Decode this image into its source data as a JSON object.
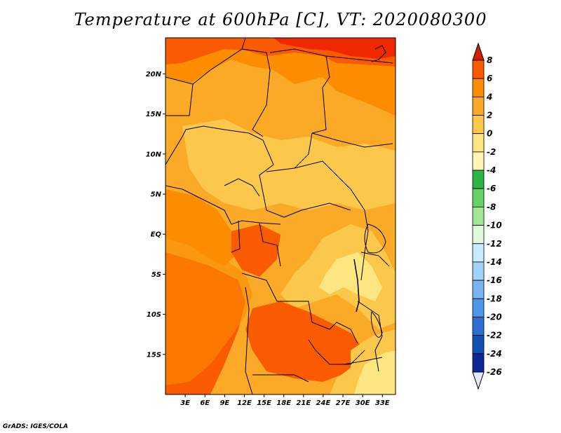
{
  "title": "Temperature at 600hPa [C], VT: 2020080300",
  "credit": "GrADS: IGES/COLA",
  "map": {
    "lon_range": [
      0,
      35
    ],
    "lat_range": [
      -20,
      24.5
    ],
    "lon_ticks": [
      {
        "value": 3,
        "label": "3E"
      },
      {
        "value": 6,
        "label": "6E"
      },
      {
        "value": 9,
        "label": "9E"
      },
      {
        "value": 12,
        "label": "12E"
      },
      {
        "value": 15,
        "label": "15E"
      },
      {
        "value": 18,
        "label": "18E"
      },
      {
        "value": 21,
        "label": "21E"
      },
      {
        "value": 24,
        "label": "24E"
      },
      {
        "value": 27,
        "label": "27E"
      },
      {
        "value": 30,
        "label": "30E"
      },
      {
        "value": 33,
        "label": "33E"
      }
    ],
    "lat_ticks": [
      {
        "value": 20,
        "label": "20N"
      },
      {
        "value": 15,
        "label": "15N"
      },
      {
        "value": 10,
        "label": "10N"
      },
      {
        "value": 5,
        "label": "5N"
      },
      {
        "value": 0,
        "label": "EQ"
      },
      {
        "value": -5,
        "label": "5S"
      },
      {
        "value": -10,
        "label": "10S"
      },
      {
        "value": -15,
        "label": "15S"
      }
    ]
  },
  "colorbar": {
    "labels": [
      "8",
      "6",
      "4",
      "2",
      "0",
      "-2",
      "-4",
      "-6",
      "-8",
      "-10",
      "-12",
      "-14",
      "-16",
      "-18",
      "-20",
      "-22",
      "-24",
      "-26"
    ],
    "colors": [
      "#f02800",
      "#fa5a00",
      "#fc8c00",
      "#fbaa28",
      "#fcc84b",
      "#fde682",
      "#fff5b4",
      "#2db446",
      "#64d264",
      "#a0e696",
      "#e0f8dc",
      "#c8ebff",
      "#a0d2fa",
      "#78b4f0",
      "#5096e6",
      "#2d6ed2",
      "#1450b4",
      "#0a2896",
      "#082060"
    ],
    "over_color": "#d21e00",
    "under_color": "#e6e6fa"
  }
}
